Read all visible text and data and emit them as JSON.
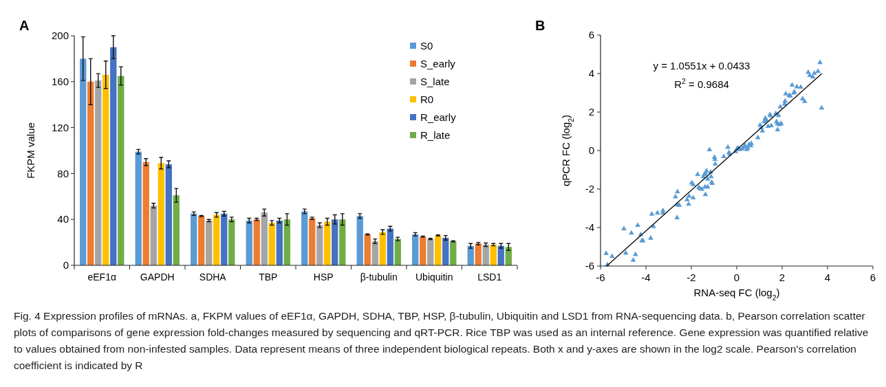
{
  "chart_data": [
    {
      "type": "bar",
      "title": "A",
      "ylabel": "FKPM value",
      "categories": [
        "eEF1α",
        "GAPDH",
        "SDHA",
        "TBP",
        "HSP",
        "β-tubulin",
        "Ubiquitin",
        "LSD1"
      ],
      "series": [
        {
          "name": "S0",
          "color": "#5b9bd5",
          "values": [
            180,
            99,
            45,
            39,
            47,
            43,
            27,
            17
          ],
          "errors": [
            19,
            2,
            1.5,
            2,
            2,
            2,
            1.5,
            2
          ]
        },
        {
          "name": "S_early",
          "color": "#ed7d31",
          "values": [
            160,
            90,
            43,
            40,
            41,
            27,
            25,
            19
          ],
          "errors": [
            20,
            3,
            0.5,
            1,
            1,
            0.5,
            0.5,
            1
          ]
        },
        {
          "name": "S_late",
          "color": "#a5a5a5",
          "values": [
            161,
            52,
            39,
            46,
            35,
            21,
            23,
            18
          ],
          "errors": [
            6,
            2,
            1,
            3,
            2,
            2,
            0.5,
            1.5
          ]
        },
        {
          "name": "R0",
          "color": "#ffc000",
          "values": [
            166,
            89,
            44,
            37,
            38,
            29,
            26,
            18
          ],
          "errors": [
            12,
            5,
            2,
            2,
            3,
            2,
            0.5,
            1
          ]
        },
        {
          "name": "R_early",
          "color": "#4472c4",
          "values": [
            190,
            88,
            45,
            39,
            40,
            32,
            24,
            17
          ],
          "errors": [
            10,
            3,
            2,
            2,
            4,
            2,
            2,
            2
          ]
        },
        {
          "name": "R_late",
          "color": "#70ad47",
          "values": [
            165,
            61,
            40,
            40,
            40,
            23,
            21,
            16
          ],
          "errors": [
            8,
            6,
            2,
            5,
            5,
            1.5,
            0.5,
            3
          ]
        }
      ],
      "ylim": [
        0,
        200
      ],
      "yticks": [
        0,
        40,
        80,
        120,
        160,
        200
      ],
      "grid": false,
      "legend": "top right",
      "annotations": [
        "Fig. 4 Expression profiles of mRNAs. a, FKPM values of eEF1α, GAPDH, SDHA, TBP, HSP, β-tubulin, Ubiquitin and LSD1 from RNA-sequencing data. b, Pearson correlation scatter plots of comparisons of gene expression fold-changes measured by sequencing and qRT-PCR. Rice TBP was used as an internal reference. Gene expression was quantified relative to values obtained from non-infested samples. Data represent means of three independent biological repeats. Both x and y-axes are shown in the log2 scale. Pearson’s correlation coefficient is indicated by R"
      ]
    },
    {
      "type": "scatter",
      "title": "B",
      "xlabel": "RNA-seq FC (log$_{2}$)",
      "ylabel": "qPCR FC (log$_{2}$)",
      "xlim": [
        -6,
        6
      ],
      "xticks": [
        -6,
        -4,
        -2,
        0,
        2,
        4,
        6
      ],
      "ylim": [
        -6,
        6
      ],
      "yticks": [
        -6,
        -4,
        -2,
        0,
        2,
        4,
        6
      ],
      "grid": false,
      "annotations": [
        "y = 1.0551x + 0.0433",
        "R$^{2}$ = 0.9684"
      ],
      "series": [
        {
          "type": "scatter",
          "marker": "triangle",
          "color": "#5b9bd5",
          "x": [
            -5.75,
            -5.49,
            -5.7,
            -4.97,
            -4.89,
            -4.64,
            -4.56,
            -4.46,
            -4.36,
            -4.23,
            -4.18,
            -4.13,
            -3.79,
            -3.74,
            -3.67,
            -3.49,
            -3.25,
            -3.25,
            -2.7,
            -2.61,
            -2.63,
            -2.61,
            -2.53,
            -2.19,
            -2.12,
            -2.1,
            -1.92,
            -1.98,
            -1.92,
            -1.72,
            -1.67,
            -1.62,
            -1.54,
            -1.47,
            -1.43,
            -1.38,
            -1.33,
            -1.38,
            -1.4,
            -1.28,
            -1.28,
            -1.2,
            -1.15,
            -1.13,
            -1.1,
            -1.08,
            -0.98,
            -0.95,
            -0.96,
            -0.57,
            -0.39,
            -0.34,
            -0.31,
            -0.05,
            0,
            0.05,
            0.15,
            0.25,
            0.32,
            0.36,
            0.44,
            0.49,
            0.54,
            0.62,
            0.64,
            0.93,
            1.03,
            1.08,
            1.13,
            1.21,
            1.26,
            1.31,
            1.38,
            1.46,
            1.5,
            1.52,
            1.72,
            1.75,
            1.79,
            1.8,
            1.84,
            1.89,
            1.96,
            1.92,
            2.11,
            2.13,
            2.16,
            2.31,
            2.36,
            2.44,
            2.51,
            2.54,
            2.65,
            2.82,
            2.9,
            2.99,
            3.15,
            3.22,
            3.35,
            3.42,
            3.58,
            3.67,
            3.74
          ],
          "values": [
            -5.35,
            -5.5,
            -5.94,
            -4.06,
            -5.33,
            -4.29,
            -5.7,
            -5.4,
            -3.88,
            -4.37,
            -4.69,
            -4.69,
            -4.55,
            -3.3,
            -3.95,
            -3.24,
            -3.12,
            -3.24,
            -2.4,
            -2.14,
            -3.49,
            -2.82,
            -2.85,
            -2.55,
            -2.79,
            -2.37,
            -2.46,
            -1.68,
            -1.77,
            -1.24,
            -1.92,
            -1.98,
            -2.01,
            -1.36,
            -1.24,
            -1.18,
            -1.06,
            -2.29,
            -1.89,
            -1.89,
            -1.48,
            0.04,
            -1.12,
            -1.36,
            -1.65,
            -1.71,
            -0.35,
            -0.7,
            -0.46,
            -0.31,
            0.17,
            -0.11,
            -0.19,
            -0.05,
            0.07,
            0.13,
            0.05,
            0.1,
            0.19,
            0.25,
            0.05,
            0.13,
            0.31,
            0.25,
            0.37,
            0.67,
            1.32,
            1.2,
            1.02,
            1.5,
            1.68,
            1.58,
            1.26,
            1.86,
            1.8,
            1.29,
            1.92,
            1.5,
            1.38,
            1.08,
            1.82,
            1.35,
            1.4,
            2.27,
            2.42,
            2.57,
            2.95,
            2.87,
            2.83,
            3.4,
            2.99,
            3.05,
            3.31,
            3.29,
            2.69,
            2.55,
            4.06,
            3.9,
            3.82,
            4.02,
            4.12,
            4.57,
            2.21
          ]
        },
        {
          "type": "line",
          "marker": "none",
          "color": "#000000",
          "x": [
            -5.73,
            3.75
          ],
          "values": [
            -6,
            4
          ]
        }
      ]
    }
  ]
}
